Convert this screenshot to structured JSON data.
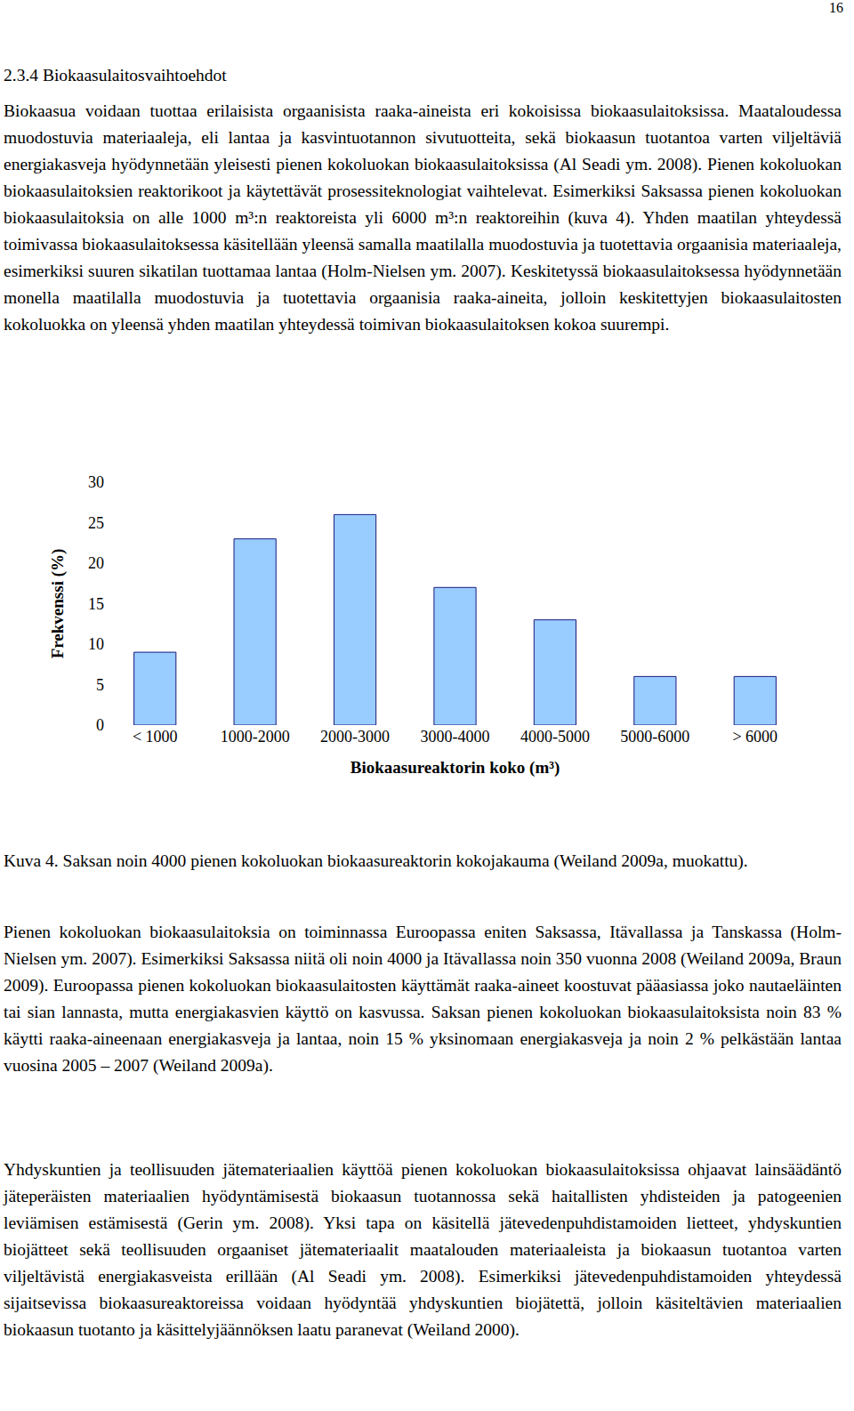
{
  "page_number": "16",
  "heading": "2.3.4 Biokaasulaitosvaihtoehdot",
  "paragraphs_before": [
    "Biokaasua voidaan tuottaa erilaisista orgaanisista raaka-aineista eri kokoisissa biokaasulaitoksissa. Maataloudessa muodostuvia materiaaleja, eli lantaa ja kasvintuotannon sivutuotteita, sekä biokaasun tuotantoa varten viljeltäviä energiakasveja hyödynnetään yleisesti pienen kokoluokan biokaasulaitoksissa (Al Seadi ym. 2008). Pienen kokoluokan biokaasulaitoksien reaktorikoot ja käytettävät prosessiteknologiat vaihtelevat. Esimerkiksi Saksassa pienen kokoluokan biokaasulaitoksia on alle 1000 m³:n reaktoreista yli 6000 m³:n reaktoreihin (kuva 4). Yhden maatilan yhteydessä toimivassa biokaasulaitoksessa käsitellään yleensä samalla maatilalla muodostuvia ja tuotettavia orgaanisia materiaaleja, esimerkiksi suuren sikatilan tuottamaa lantaa (Holm-Nielsen ym. 2007). Keskitetyssä biokaasulaitoksessa hyödynnetään monella maatilalla muodostuvia ja tuotettavia orgaanisia raaka-aineita, jolloin keskitettyjen biokaasulaitosten kokoluokka on yleensä yhden maatilan yhteydessä toimivan biokaasulaitoksen kokoa suurempi."
  ],
  "chart_data": {
    "type": "bar",
    "categories": [
      "< 1000",
      "1000-2000",
      "2000-3000",
      "3000-4000",
      "4000-5000",
      "5000-6000",
      "> 6000"
    ],
    "values": [
      9,
      23,
      26,
      17,
      13,
      6,
      6
    ],
    "color": "#99ccff",
    "x_label": "Biokaasureaktorin koko (m³)",
    "y_label": "Frekvenssi (%)",
    "ylim": [
      0,
      30
    ],
    "yticks": [
      0,
      5,
      10,
      15,
      20,
      25,
      30
    ],
    "grid": false
  },
  "caption": "Kuva 4. Saksan noin 4000 pienen kokoluokan biokaasureaktorin kokojakauma (Weiland 2009a, muokattu).",
  "paragraphs_after": [
    "Pienen kokoluokan biokaasulaitoksia on toiminnassa Euroopassa eniten Saksassa, Itävallassa ja Tanskassa (Holm-Nielsen ym. 2007). Esimerkiksi Saksassa niitä oli noin 4000 ja Itävallassa noin 350 vuonna 2008 (Weiland 2009a, Braun 2009). Euroopassa pienen kokoluokan biokaasulaitosten käyttämät raaka-aineet koostuvat pääasiassa joko nautaeläinten tai sian lannasta, mutta energiakasvien käyttö on kasvussa. Saksan pienen kokoluokan biokaasulaitoksista noin 83 % käytti raaka-aineenaan energiakasveja ja lantaa, noin 15 % yksinomaan energiakasveja ja noin 2 % pelkästään lantaa vuosina 2005 – 2007 (Weiland 2009a).",
    "Yhdyskuntien ja teollisuuden jätemateriaalien käyttöä pienen kokoluokan biokaasulaitoksissa ohjaavat lainsäädäntö jäteperäisten materiaalien hyödyntämisestä biokaasun tuotannossa sekä haitallisten yhdisteiden ja patogeenien leviämisen estämisestä (Gerin ym. 2008). Yksi tapa on käsitellä jätevedenpuhdistamoiden lietteet, yhdyskuntien biojätteet sekä teollisuuden orgaaniset jätemateriaalit maatalouden materiaaleista ja biokaasun tuotantoa varten viljeltävistä energiakasveista erillään (Al Seadi ym. 2008). Esimerkiksi jätevedenpuhdistamoiden yhteydessä sijaitsevissa biokaasureaktoreissa voidaan hyödyntää yhdyskuntien biojätettä, jolloin käsiteltävien materiaalien biokaasun tuotanto ja käsittelyjäännöksen laatu paranevat (Weiland 2000)."
  ]
}
